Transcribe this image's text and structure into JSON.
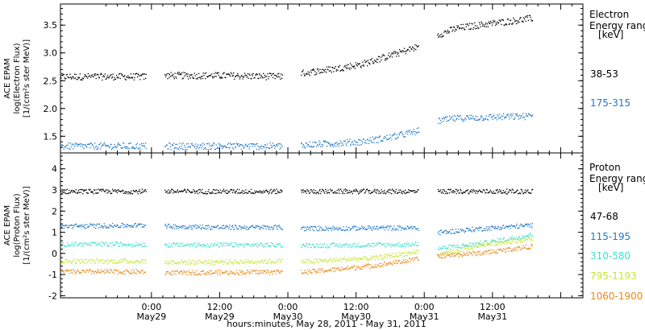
{
  "chart_data": [
    {
      "type": "scatter",
      "title": "",
      "ylabel_lines": [
        "ACE EPAM",
        "log(Electron Flux)",
        "[1/(cm²s ster MeV)]"
      ],
      "y_ticks": [
        "1.5",
        "2.0",
        "2.5",
        "3.0",
        "3.5"
      ],
      "ylim": [
        1.2,
        3.88
      ],
      "legend_lines": [
        "Electron",
        "Energy ranges",
        "[keV]"
      ],
      "x_range_days": [
        0,
        3.83
      ],
      "data_gaps_days": [
        [
          0.625,
          0.76
        ],
        [
          1.625,
          1.76
        ],
        [
          2.625,
          2.76
        ]
      ],
      "series": [
        {
          "name": "38-53",
          "color": "#000000",
          "x": [
            0.0,
            0.62,
            0.76,
            1.2,
            1.62,
            1.76,
            2.0,
            2.2,
            2.4,
            2.62,
            2.76,
            2.9,
            3.1,
            3.3,
            3.45
          ],
          "y": [
            2.58,
            2.58,
            2.6,
            2.6,
            2.58,
            2.64,
            2.72,
            2.8,
            2.95,
            3.12,
            3.33,
            3.45,
            3.52,
            3.58,
            3.63
          ]
        },
        {
          "name": "175-315",
          "color": "#1f78c8",
          "x": [
            0.0,
            0.62,
            0.76,
            1.2,
            1.62,
            1.76,
            2.0,
            2.2,
            2.4,
            2.62,
            2.76,
            2.9,
            3.1,
            3.3,
            3.45
          ],
          "y": [
            1.33,
            1.33,
            1.33,
            1.33,
            1.33,
            1.35,
            1.38,
            1.41,
            1.48,
            1.6,
            1.78,
            1.83,
            1.85,
            1.86,
            1.87
          ]
        }
      ]
    },
    {
      "type": "scatter",
      "title": "",
      "ylabel_lines": [
        "ACE EPAM",
        "log(Proton Flux)",
        "[1/(cm²s ster MeV)]"
      ],
      "y_ticks": [
        "-2",
        "-1",
        "0",
        "1",
        "2",
        "3",
        "4"
      ],
      "ylim": [
        -2.1,
        4.75
      ],
      "legend_lines": [
        "Proton",
        "Energy ranges",
        "[keV]"
      ],
      "x_range_days": [
        0,
        3.83
      ],
      "data_gaps_days": [
        [
          0.625,
          0.76
        ],
        [
          1.625,
          1.76
        ],
        [
          2.625,
          2.76
        ]
      ],
      "series": [
        {
          "name": "47-68",
          "color": "#000000",
          "x": [
            0.0,
            0.62,
            0.76,
            1.2,
            1.62,
            1.76,
            2.0,
            2.3,
            2.62,
            2.76,
            3.1,
            3.45
          ],
          "y": [
            2.95,
            2.95,
            2.95,
            2.95,
            2.95,
            2.95,
            2.95,
            2.95,
            2.95,
            2.95,
            2.95,
            2.95
          ]
        },
        {
          "name": "115-195",
          "color": "#1f78c8",
          "x": [
            0.0,
            0.62,
            0.76,
            1.2,
            1.62,
            1.76,
            2.0,
            2.3,
            2.62,
            2.76,
            3.1,
            3.45
          ],
          "y": [
            1.3,
            1.35,
            1.3,
            1.25,
            1.25,
            1.2,
            1.2,
            1.22,
            1.22,
            1.0,
            1.2,
            1.35
          ]
        },
        {
          "name": "310-580",
          "color": "#40e0d0",
          "x": [
            0.0,
            0.62,
            0.76,
            1.2,
            1.62,
            1.76,
            2.0,
            2.3,
            2.62,
            2.76,
            3.1,
            3.45
          ],
          "y": [
            0.45,
            0.45,
            0.42,
            0.42,
            0.42,
            0.4,
            0.4,
            0.42,
            0.45,
            0.25,
            0.5,
            0.9
          ]
        },
        {
          "name": "795-1193",
          "color": "#c8e632",
          "x": [
            0.0,
            0.62,
            0.76,
            1.2,
            1.62,
            1.76,
            2.0,
            2.3,
            2.62,
            2.76,
            3.1,
            3.45
          ],
          "y": [
            -0.35,
            -0.35,
            -0.4,
            -0.38,
            -0.35,
            -0.38,
            -0.3,
            -0.2,
            0.1,
            -0.1,
            0.45,
            0.7
          ]
        },
        {
          "name": "1060-1900",
          "color": "#e8891a",
          "x": [
            0.0,
            0.62,
            0.76,
            1.2,
            1.62,
            1.76,
            2.0,
            2.3,
            2.62,
            2.76,
            3.1,
            3.45
          ],
          "y": [
            -0.85,
            -0.85,
            -0.9,
            -0.88,
            -0.85,
            -0.88,
            -0.75,
            -0.55,
            -0.25,
            -0.1,
            0.05,
            0.35
          ]
        }
      ]
    }
  ],
  "x_axis": {
    "tick_labels": [
      {
        "time": "0:00",
        "date": "May29",
        "day": 0.667
      },
      {
        "time": "12:00",
        "date": "May29",
        "day": 1.167
      },
      {
        "time": "0:00",
        "date": "May30",
        "day": 1.667
      },
      {
        "time": "12:00",
        "date": "May30",
        "day": 2.167
      },
      {
        "time": "0:00",
        "date": "May31",
        "day": 2.667
      },
      {
        "time": "12:00",
        "date": "May31",
        "day": 3.167
      }
    ],
    "xlabel": "hours:minutes, May 28, 2011 - May 31, 2011"
  }
}
